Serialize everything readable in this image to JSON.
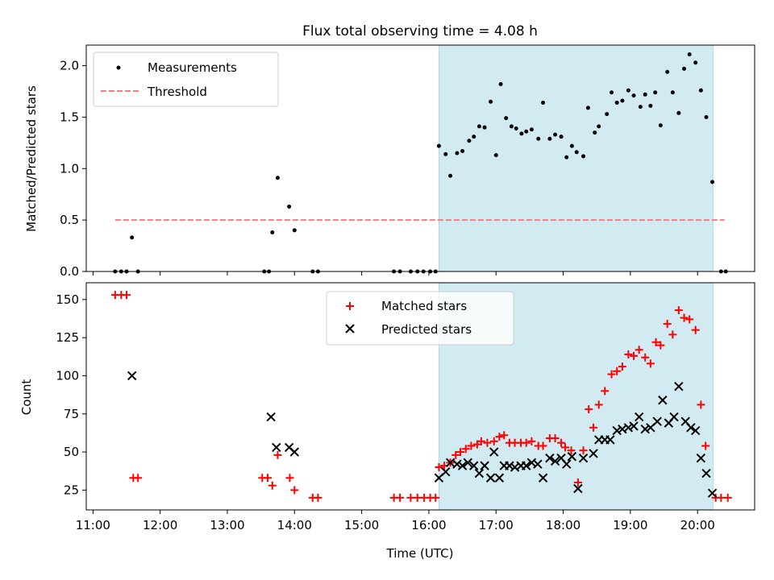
{
  "chart_data": [
    {
      "type": "scatter",
      "title": "Flux total observing time = 4.08 h",
      "xlabel": "",
      "ylabel": "Matched/Predicted stars",
      "xlim": [
        10.9,
        20.85
      ],
      "ylim": [
        0,
        2.2
      ],
      "yticks": [
        "0.0",
        "0.5",
        "1.0",
        "1.5",
        "2.0"
      ],
      "shaded_interval": {
        "start": 16.15,
        "end": 20.23,
        "color": "#add8e6"
      },
      "threshold": {
        "name": "Threshold",
        "value": 0.5,
        "x_range": [
          11.33,
          20.4
        ],
        "color": "#f08080"
      },
      "legend_position": "upper-left",
      "series": [
        {
          "name": "Measurements",
          "marker": "dot",
          "color": "#000000",
          "points": [
            [
              11.33,
              0
            ],
            [
              11.42,
              0
            ],
            [
              11.5,
              0
            ],
            [
              11.58,
              0.33
            ],
            [
              11.67,
              0
            ],
            [
              13.55,
              0
            ],
            [
              13.62,
              0
            ],
            [
              13.67,
              0.38
            ],
            [
              13.75,
              0.91
            ],
            [
              13.92,
              0.63
            ],
            [
              14.0,
              0.4
            ],
            [
              14.27,
              0
            ],
            [
              14.35,
              0
            ],
            [
              15.48,
              0
            ],
            [
              15.57,
              0
            ],
            [
              15.73,
              0
            ],
            [
              15.83,
              0
            ],
            [
              15.92,
              0
            ],
            [
              16.02,
              0
            ],
            [
              16.1,
              0
            ],
            [
              16.15,
              1.22
            ],
            [
              16.25,
              1.14
            ],
            [
              16.32,
              0.93
            ],
            [
              16.42,
              1.15
            ],
            [
              16.5,
              1.17
            ],
            [
              16.6,
              1.27
            ],
            [
              16.67,
              1.31
            ],
            [
              16.75,
              1.41
            ],
            [
              16.83,
              1.4
            ],
            [
              16.92,
              1.65
            ],
            [
              17.0,
              1.13
            ],
            [
              17.07,
              1.82
            ],
            [
              17.15,
              1.49
            ],
            [
              17.23,
              1.41
            ],
            [
              17.3,
              1.39
            ],
            [
              17.38,
              1.34
            ],
            [
              17.45,
              1.36
            ],
            [
              17.53,
              1.38
            ],
            [
              17.63,
              1.29
            ],
            [
              17.7,
              1.64
            ],
            [
              17.8,
              1.29
            ],
            [
              17.88,
              1.33
            ],
            [
              17.97,
              1.31
            ],
            [
              18.05,
              1.11
            ],
            [
              18.13,
              1.22
            ],
            [
              18.2,
              1.16
            ],
            [
              18.3,
              1.12
            ],
            [
              18.37,
              1.59
            ],
            [
              18.47,
              1.35
            ],
            [
              18.53,
              1.41
            ],
            [
              18.65,
              1.53
            ],
            [
              18.72,
              1.74
            ],
            [
              18.8,
              1.64
            ],
            [
              18.88,
              1.66
            ],
            [
              18.97,
              1.76
            ],
            [
              19.05,
              1.71
            ],
            [
              19.15,
              1.6
            ],
            [
              19.22,
              1.72
            ],
            [
              19.3,
              1.61
            ],
            [
              19.37,
              1.74
            ],
            [
              19.45,
              1.42
            ],
            [
              19.55,
              1.94
            ],
            [
              19.63,
              1.74
            ],
            [
              19.72,
              1.54
            ],
            [
              19.8,
              1.97
            ],
            [
              19.88,
              2.11
            ],
            [
              19.97,
              2.03
            ],
            [
              20.05,
              1.76
            ],
            [
              20.13,
              1.5
            ],
            [
              20.22,
              0.87
            ],
            [
              20.35,
              0
            ],
            [
              20.42,
              0
            ]
          ]
        }
      ]
    },
    {
      "type": "scatter",
      "title": "",
      "xlabel": "Time (UTC)",
      "ylabel": "Count",
      "xlim": [
        10.9,
        20.85
      ],
      "ylim": [
        12,
        161
      ],
      "yticks": [
        "25",
        "50",
        "75",
        "100",
        "125",
        "150"
      ],
      "xticks": [
        "11:00",
        "12:00",
        "13:00",
        "14:00",
        "15:00",
        "16:00",
        "17:00",
        "18:00",
        "19:00",
        "20:00"
      ],
      "shaded_interval": {
        "start": 16.15,
        "end": 20.23,
        "color": "#add8e6"
      },
      "legend_position": "upper-center",
      "series": [
        {
          "name": "Matched stars",
          "marker": "plus",
          "color": "#ff0000",
          "points": [
            [
              11.33,
              153
            ],
            [
              11.42,
              153
            ],
            [
              11.5,
              153
            ],
            [
              11.6,
              33
            ],
            [
              11.67,
              33
            ],
            [
              13.52,
              33
            ],
            [
              13.6,
              33
            ],
            [
              13.67,
              28
            ],
            [
              13.75,
              48
            ],
            [
              13.93,
              33
            ],
            [
              14.0,
              25
            ],
            [
              14.27,
              20
            ],
            [
              14.35,
              20
            ],
            [
              15.48,
              20
            ],
            [
              15.57,
              20
            ],
            [
              15.73,
              20
            ],
            [
              15.83,
              20
            ],
            [
              15.93,
              20
            ],
            [
              16.02,
              20
            ],
            [
              16.1,
              20
            ],
            [
              16.15,
              40
            ],
            [
              16.23,
              41
            ],
            [
              16.32,
              43
            ],
            [
              16.4,
              48
            ],
            [
              16.47,
              50
            ],
            [
              16.55,
              52
            ],
            [
              16.63,
              54
            ],
            [
              16.72,
              55
            ],
            [
              16.78,
              57
            ],
            [
              16.87,
              56
            ],
            [
              16.97,
              57
            ],
            [
              17.05,
              60
            ],
            [
              17.12,
              61
            ],
            [
              17.2,
              56
            ],
            [
              17.28,
              56
            ],
            [
              17.37,
              56
            ],
            [
              17.45,
              56
            ],
            [
              17.53,
              57
            ],
            [
              17.63,
              54
            ],
            [
              17.7,
              54
            ],
            [
              17.8,
              59
            ],
            [
              17.88,
              59
            ],
            [
              17.97,
              56
            ],
            [
              18.03,
              53
            ],
            [
              18.12,
              51
            ],
            [
              18.22,
              30
            ],
            [
              18.3,
              51
            ],
            [
              18.38,
              78
            ],
            [
              18.45,
              66
            ],
            [
              18.53,
              81
            ],
            [
              18.62,
              90
            ],
            [
              18.72,
              101
            ],
            [
              18.8,
              103
            ],
            [
              18.88,
              106
            ],
            [
              18.97,
              114
            ],
            [
              19.05,
              113
            ],
            [
              19.13,
              117
            ],
            [
              19.22,
              112
            ],
            [
              19.3,
              108
            ],
            [
              19.38,
              122
            ],
            [
              19.45,
              120
            ],
            [
              19.55,
              134
            ],
            [
              19.63,
              127
            ],
            [
              19.72,
              143
            ],
            [
              19.8,
              138
            ],
            [
              19.88,
              137
            ],
            [
              19.97,
              130
            ],
            [
              20.05,
              81
            ],
            [
              20.12,
              54
            ],
            [
              20.27,
              20
            ],
            [
              20.35,
              20
            ],
            [
              20.45,
              20
            ]
          ]
        },
        {
          "name": "Predicted stars",
          "marker": "x",
          "color": "#000000",
          "points": [
            [
              11.58,
              100
            ],
            [
              13.65,
              73
            ],
            [
              13.73,
              53
            ],
            [
              13.92,
              53
            ],
            [
              14.0,
              50
            ],
            [
              16.15,
              33
            ],
            [
              16.25,
              37
            ],
            [
              16.32,
              43
            ],
            [
              16.42,
              42
            ],
            [
              16.5,
              41
            ],
            [
              16.58,
              43
            ],
            [
              16.67,
              41
            ],
            [
              16.75,
              36
            ],
            [
              16.83,
              41
            ],
            [
              16.92,
              33
            ],
            [
              16.97,
              50
            ],
            [
              17.05,
              33
            ],
            [
              17.12,
              41
            ],
            [
              17.2,
              41
            ],
            [
              17.28,
              40
            ],
            [
              17.37,
              41
            ],
            [
              17.45,
              41
            ],
            [
              17.53,
              43
            ],
            [
              17.62,
              42
            ],
            [
              17.7,
              33
            ],
            [
              17.8,
              46
            ],
            [
              17.88,
              44
            ],
            [
              17.97,
              46
            ],
            [
              18.05,
              42
            ],
            [
              18.13,
              47
            ],
            [
              18.22,
              26
            ],
            [
              18.3,
              46
            ],
            [
              18.45,
              49
            ],
            [
              18.53,
              58
            ],
            [
              18.62,
              58
            ],
            [
              18.7,
              58
            ],
            [
              18.8,
              64
            ],
            [
              18.88,
              65
            ],
            [
              18.97,
              66
            ],
            [
              19.05,
              67
            ],
            [
              19.13,
              73
            ],
            [
              19.22,
              65
            ],
            [
              19.3,
              66
            ],
            [
              19.4,
              70
            ],
            [
              19.48,
              84
            ],
            [
              19.57,
              69
            ],
            [
              19.65,
              73
            ],
            [
              19.72,
              93
            ],
            [
              19.82,
              70
            ],
            [
              19.9,
              66
            ],
            [
              19.97,
              64
            ],
            [
              20.05,
              46
            ],
            [
              20.13,
              36
            ],
            [
              20.22,
              23
            ]
          ]
        }
      ]
    }
  ]
}
